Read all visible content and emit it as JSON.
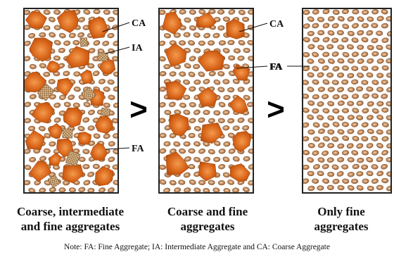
{
  "panels": [
    {
      "id": "panel-coarse-intermediate-fine",
      "caption_lines": [
        "Coarse, intermediate",
        "and fine aggregates"
      ],
      "callouts": [
        "CA",
        "IA",
        "FA"
      ]
    },
    {
      "id": "panel-coarse-fine",
      "caption_lines": [
        "Coarse and fine",
        "aggregates"
      ],
      "callouts": [
        "CA",
        "FA"
      ]
    },
    {
      "id": "panel-fine-only",
      "caption_lines": [
        "Only fine",
        "aggregates"
      ],
      "callouts": [
        "FA"
      ]
    }
  ],
  "comparison_symbols": [
    ">",
    ">"
  ],
  "note": "Note: FA: Fine Aggregate; IA: Intermediate Aggregate and CA: Coarse Aggregate",
  "colors": {
    "coarse": "#c9560f",
    "coarse_light": "#f08a3c",
    "fine": "#b5733e",
    "fine_light": "#e2b48a",
    "intermediate": "#d7b488",
    "outline": "#222222"
  }
}
